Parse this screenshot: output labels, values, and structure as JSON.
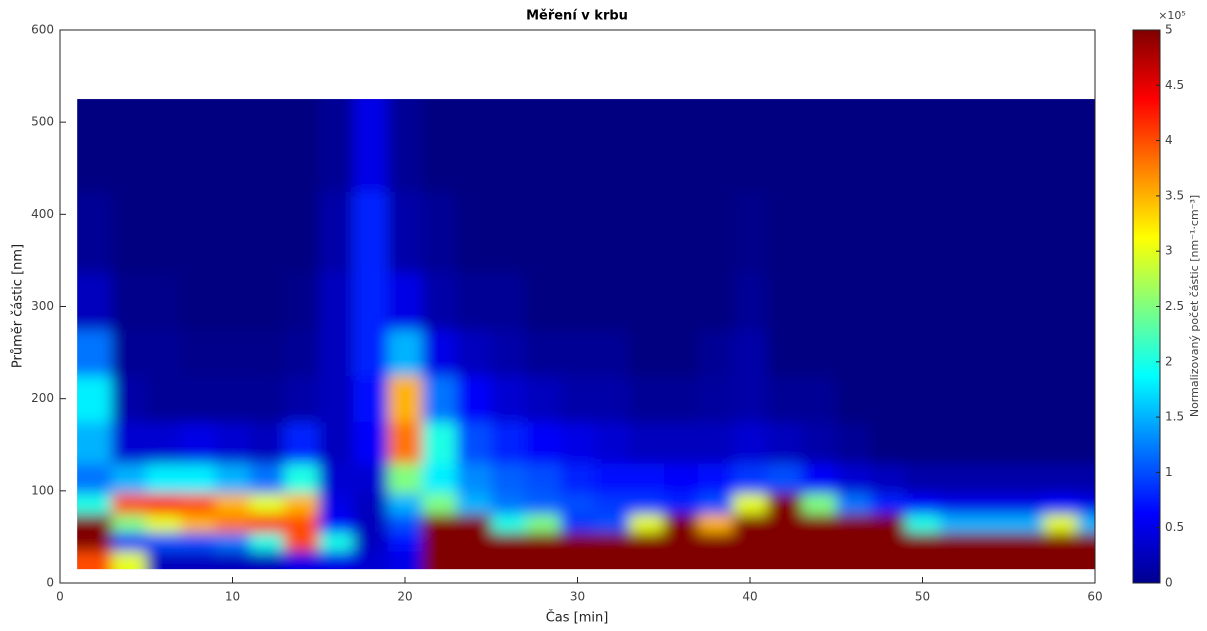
{
  "chart_data": {
    "type": "heatmap",
    "title": "Měření v krbu",
    "x_label": "Čas [min]",
    "y_label": "Průměr částic [nm]",
    "colorbar_label": "Normalizovaný počet částic [nm⁻¹·cm⁻³]",
    "colorbar_exponent": "×10⁵",
    "colormap": "jet",
    "xlim": [
      0,
      60
    ],
    "xticks": [
      0,
      10,
      20,
      30,
      40,
      50,
      60
    ],
    "ylim": [
      0,
      600
    ],
    "yticks": [
      0,
      100,
      200,
      300,
      400,
      500,
      600
    ],
    "clim": [
      0,
      5
    ],
    "cticks": [
      0,
      0.5,
      1,
      1.5,
      2,
      2.5,
      3,
      3.5,
      4,
      4.5,
      5
    ],
    "x": [
      2,
      4,
      6,
      8,
      10,
      12,
      14,
      16,
      18,
      20,
      22,
      24,
      26,
      28,
      30,
      32,
      34,
      36,
      38,
      40,
      42,
      44,
      46,
      48,
      50,
      52,
      54,
      56,
      58,
      60
    ],
    "y": [
      25,
      45,
      65,
      85,
      110,
      150,
      200,
      250,
      300,
      375,
      475
    ],
    "values": [
      [
        4,
        5,
        5,
        2,
        1.2,
        1.5,
        1.8,
        1.2,
        0.3,
        0.1,
        0
      ],
      [
        3,
        0.8,
        2.5,
        4,
        1.5,
        0.4,
        0.2,
        0.1,
        0.05,
        0,
        0
      ],
      [
        0.3,
        1,
        3,
        4.3,
        1.8,
        0.4,
        0.1,
        0.1,
        0.05,
        0,
        0
      ],
      [
        0.3,
        1,
        3.5,
        4,
        1.8,
        0.5,
        0.1,
        0.05,
        0,
        0,
        0
      ],
      [
        0.3,
        1.2,
        3.8,
        3.5,
        1.5,
        0.4,
        0.1,
        0.05,
        0,
        0,
        0
      ],
      [
        0.3,
        2,
        4.2,
        3,
        1.2,
        0.3,
        0.1,
        0.05,
        0,
        0,
        0
      ],
      [
        0.5,
        4,
        4,
        3.5,
        2,
        0.8,
        0.2,
        0.1,
        0.05,
        0,
        0
      ],
      [
        0.5,
        2,
        0.6,
        0.5,
        0.4,
        0.3,
        0.3,
        0.3,
        0.3,
        0.2,
        0.1
      ],
      [
        0.4,
        0.3,
        0.3,
        0.3,
        0.4,
        0.6,
        0.7,
        0.8,
        0.8,
        0.8,
        0.5
      ],
      [
        0.5,
        0.7,
        1,
        1.5,
        2.5,
        3.8,
        3.5,
        1.5,
        0.5,
        0.2,
        0.1
      ],
      [
        5,
        5,
        5,
        2.5,
        1.8,
        2,
        1.2,
        0.5,
        0.2,
        0.1,
        0
      ],
      [
        5,
        5,
        5,
        1.5,
        1.3,
        1,
        0.6,
        0.3,
        0.1,
        0,
        0
      ],
      [
        5,
        5,
        2,
        1.2,
        1.1,
        0.8,
        0.4,
        0.2,
        0.1,
        0,
        0
      ],
      [
        5,
        5,
        2.5,
        1.1,
        1,
        0.6,
        0.3,
        0.1,
        0,
        0,
        0
      ],
      [
        5,
        5,
        0.9,
        1,
        0.8,
        0.5,
        0.2,
        0.1,
        0,
        0,
        0
      ],
      [
        5,
        5,
        1,
        0.9,
        0.7,
        0.4,
        0.2,
        0.1,
        0,
        0,
        0
      ],
      [
        5,
        5,
        3,
        0.9,
        0.7,
        0.3,
        0.1,
        0,
        0,
        0,
        0
      ],
      [
        5,
        5,
        5,
        0.8,
        0.6,
        0.3,
        0.1,
        0,
        0,
        0,
        0
      ],
      [
        5,
        5,
        3.5,
        1,
        0.7,
        0.3,
        0.15,
        0.1,
        0,
        0,
        0
      ],
      [
        5,
        5,
        5,
        3,
        0.9,
        0.4,
        0.2,
        0.2,
        0.1,
        0.05,
        0
      ],
      [
        5,
        5,
        5,
        5,
        1,
        0.3,
        0.1,
        0,
        0,
        0,
        0
      ],
      [
        5,
        5,
        5,
        2.5,
        0.6,
        0.2,
        0.1,
        0,
        0,
        0,
        0
      ],
      [
        5,
        5,
        5,
        1.2,
        0.4,
        0.1,
        0,
        0,
        0,
        0,
        0
      ],
      [
        5,
        5,
        5,
        0.8,
        0.3,
        0,
        0,
        0,
        0,
        0,
        0
      ],
      [
        5,
        5,
        2,
        0.6,
        0.2,
        0,
        0,
        0,
        0,
        0,
        0
      ],
      [
        5,
        5,
        1.5,
        0.5,
        0.2,
        0,
        0,
        0,
        0,
        0,
        0
      ],
      [
        5,
        5,
        1.5,
        0.5,
        0.2,
        0,
        0,
        0,
        0,
        0,
        0
      ],
      [
        5,
        5,
        1.5,
        0.5,
        0.2,
        0,
        0,
        0,
        0,
        0,
        0
      ],
      [
        5,
        5,
        3,
        0.6,
        0.2,
        0,
        0,
        0,
        0,
        0,
        0
      ],
      [
        5,
        5,
        1.5,
        0.5,
        0.2,
        0,
        0,
        0,
        0,
        0,
        0
      ]
    ]
  }
}
